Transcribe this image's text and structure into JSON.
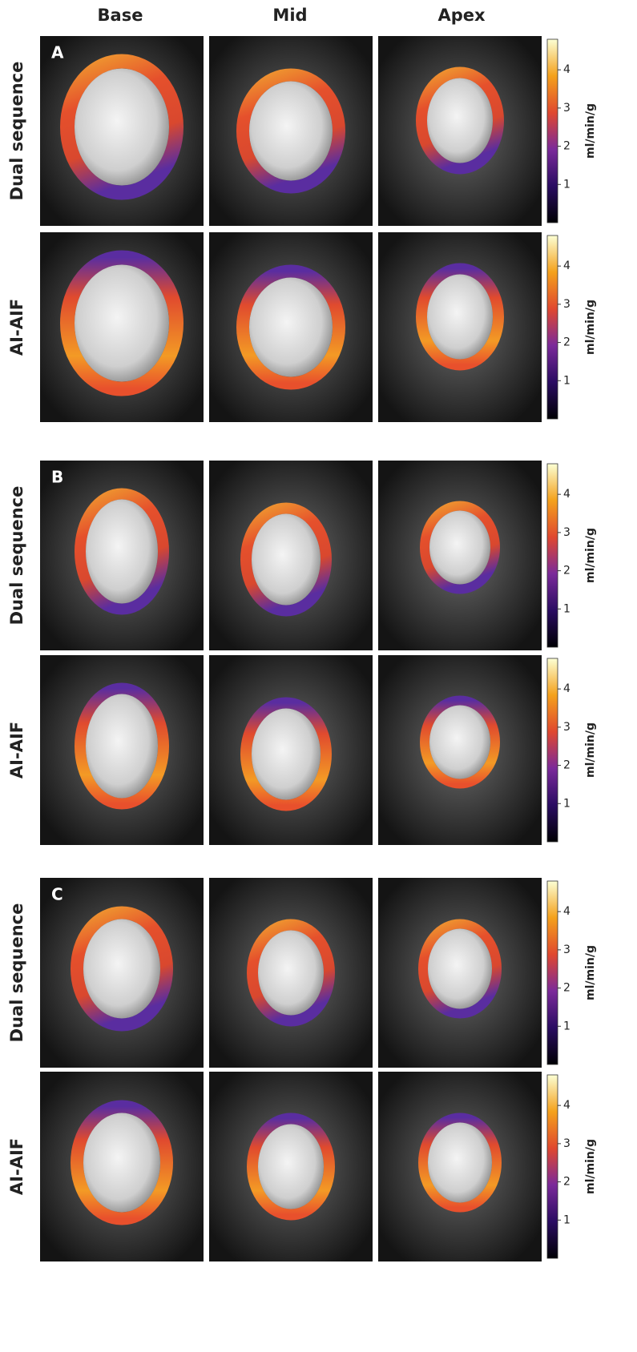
{
  "column_headers": [
    "Base",
    "Mid",
    "Apex"
  ],
  "panels": [
    {
      "label": "A",
      "rows": [
        {
          "label": "Dual sequence"
        },
        {
          "label": "AI-AIF"
        }
      ]
    },
    {
      "label": "B",
      "rows": [
        {
          "label": "Dual sequence"
        },
        {
          "label": "AI-AIF"
        }
      ]
    },
    {
      "label": "C",
      "rows": [
        {
          "label": "Dual sequence"
        },
        {
          "label": "AI-AIF"
        }
      ]
    }
  ],
  "colorbar": {
    "label": "ml/min/g",
    "lim": [
      0,
      4.8
    ],
    "ticks": [
      1,
      2,
      3,
      4
    ]
  }
}
